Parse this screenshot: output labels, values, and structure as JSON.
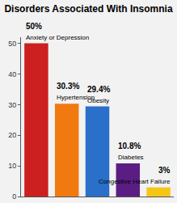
{
  "chart_data": {
    "type": "bar",
    "title": "Disorders Associated With Insomnia",
    "categories": [
      "Anxiety or Depression",
      "Hypertension",
      "Obesity",
      "Diabetes",
      "Congestive Heart Failure"
    ],
    "values": [
      50,
      30.3,
      29.4,
      10.8,
      3
    ],
    "value_labels": [
      "50%",
      "30.3%",
      "29.4%",
      "10.8%",
      "3%"
    ],
    "colors": [
      "#cc1f1f",
      "#f07a10",
      "#2a6fc9",
      "#5a1e82",
      "#f5c518"
    ],
    "ylim": [
      0,
      52
    ],
    "yticks": [
      0,
      10,
      20,
      30,
      40,
      50
    ],
    "grid": false,
    "data_labels": true,
    "tick_labels": "y"
  }
}
